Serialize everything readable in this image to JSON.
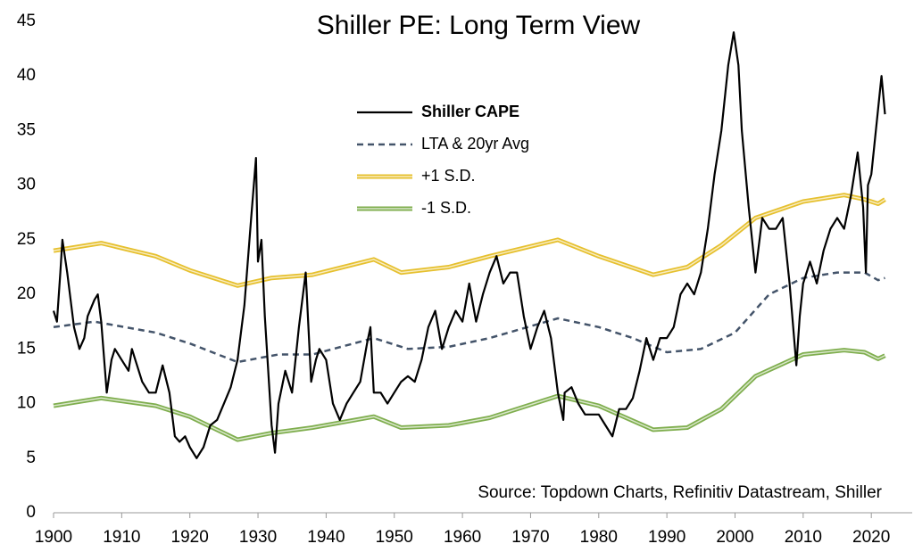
{
  "chart_data": {
    "type": "line",
    "title": "Shiller PE: Long Term View",
    "annotation": "Source: Topdown Charts, Refinitiv Datastream, Shiller",
    "xlim": [
      1900,
      2026
    ],
    "xticks": [
      1900,
      1910,
      1920,
      1930,
      1940,
      1950,
      1960,
      1970,
      1980,
      1990,
      2000,
      2010,
      2020
    ],
    "ylim": [
      0,
      45
    ],
    "yticks": [
      0,
      5,
      10,
      15,
      20,
      25,
      30,
      35,
      40,
      45
    ],
    "grid": false,
    "legend": "top-left",
    "series": [
      {
        "name": "Shiller CAPE",
        "color": "#000000",
        "style": "solid",
        "x": [
          1900,
          1900.5,
          1901,
          1901.3,
          1902,
          1903,
          1903.8,
          1904.5,
          1905,
          1906,
          1906.5,
          1907,
          1907.8,
          1908.5,
          1909,
          1910,
          1911,
          1911.5,
          1912,
          1913,
          1914,
          1915,
          1916,
          1917,
          1917.8,
          1918.5,
          1919.3,
          1920,
          1921,
          1922,
          1923,
          1924,
          1925,
          1926,
          1927,
          1928,
          1929,
          1929.7,
          1930,
          1930.5,
          1931,
          1932,
          1932.5,
          1933,
          1934,
          1935,
          1936,
          1937,
          1937.8,
          1938.5,
          1939,
          1940,
          1941,
          1942,
          1943,
          1944,
          1945,
          1946,
          1946.5,
          1947,
          1948,
          1949,
          1950,
          1951,
          1952,
          1953,
          1954,
          1955,
          1956,
          1957,
          1958,
          1959,
          1960,
          1961,
          1962,
          1963,
          1964,
          1965,
          1966,
          1967,
          1968,
          1969,
          1970,
          1971,
          1972,
          1973,
          1974,
          1974.8,
          1975,
          1976,
          1977,
          1978,
          1979,
          1980,
          1981,
          1982,
          1983,
          1984,
          1985,
          1986,
          1987,
          1988,
          1989,
          1990,
          1991,
          1992,
          1993,
          1994,
          1995,
          1996,
          1997,
          1998,
          1999,
          1999.8,
          2000.5,
          2001,
          2002,
          2003,
          2004,
          2005,
          2006,
          2007,
          2008,
          2009,
          2009.5,
          2010,
          2011,
          2012,
          2013,
          2014,
          2015,
          2016,
          2017,
          2018,
          2018.8,
          2019.2,
          2019.5,
          2020,
          2021,
          2021.5,
          2022
        ],
        "values": [
          18.5,
          17.5,
          22,
          25,
          22,
          17,
          15,
          16,
          18,
          19.5,
          20,
          17.5,
          11,
          14,
          15,
          14,
          13,
          15,
          14,
          12,
          11,
          11,
          13.5,
          11,
          7,
          6.5,
          7,
          6,
          5,
          6,
          8,
          8.5,
          10,
          11.5,
          14,
          19,
          27,
          32.5,
          23,
          25,
          18,
          8,
          5.5,
          10,
          13,
          11,
          17,
          22,
          12,
          14,
          15,
          14,
          10,
          8.5,
          10,
          11,
          12,
          15.5,
          17,
          11,
          11,
          10,
          11,
          12,
          12.5,
          12,
          14,
          17,
          18.5,
          15,
          17,
          18.5,
          17.5,
          21,
          17.5,
          20,
          22,
          23.5,
          21,
          22,
          22,
          18,
          15,
          17,
          18.5,
          16,
          11,
          8.5,
          11,
          11.5,
          10,
          9,
          9,
          9,
          8,
          7,
          9.5,
          9.5,
          10.5,
          13,
          16,
          14,
          16,
          16,
          17,
          20,
          21,
          20,
          22,
          26,
          31,
          35,
          41,
          44,
          41,
          35,
          28,
          22,
          27,
          26,
          26,
          27,
          21,
          13.5,
          18,
          21,
          23,
          21,
          24,
          26,
          27,
          26,
          29,
          33,
          28,
          22,
          30,
          31,
          37,
          40,
          36.5
        ]
      },
      {
        "name": "LTA & 20yr Avg",
        "color": "#44546a",
        "style": "dashed",
        "x": [
          1900,
          1906,
          1915,
          1920,
          1927,
          1933,
          1938,
          1947,
          1952,
          1958,
          1964,
          1974,
          1980,
          1985,
          1990,
          1995,
          2000,
          2005,
          2010,
          2015,
          2019,
          2021,
          2022
        ],
        "values": [
          17,
          17.5,
          16.5,
          15.5,
          13.8,
          14.5,
          14.5,
          16,
          15,
          15.2,
          16,
          17.8,
          17,
          16,
          14.7,
          15,
          16.5,
          20,
          21.5,
          22,
          22,
          21.3,
          21.5
        ]
      },
      {
        "name": "+1 S.D.",
        "color": "#e6c02e",
        "style": "double",
        "x": [
          1900,
          1907,
          1915,
          1920,
          1927,
          1932,
          1938,
          1947,
          1951,
          1958,
          1964,
          1974,
          1980,
          1988,
          1993,
          1998,
          2003,
          2010,
          2016,
          2019,
          2021,
          2022
        ],
        "values": [
          24,
          24.7,
          23.5,
          22.2,
          20.8,
          21.5,
          21.8,
          23.2,
          22,
          22.5,
          23.5,
          25,
          23.5,
          21.8,
          22.5,
          24.5,
          27,
          28.5,
          29.1,
          28.7,
          28.3,
          28.7
        ]
      },
      {
        "name": "-1 S.D.",
        "color": "#7fae4e",
        "style": "double",
        "x": [
          1900,
          1907,
          1915,
          1920,
          1927,
          1932,
          1938,
          1947,
          1951,
          1958,
          1964,
          1974,
          1980,
          1988,
          1993,
          1998,
          2003,
          2010,
          2016,
          2019,
          2021,
          2022
        ],
        "values": [
          9.8,
          10.5,
          9.8,
          8.8,
          6.7,
          7.3,
          7.8,
          8.8,
          7.8,
          8,
          8.7,
          10.7,
          9.8,
          7.6,
          7.8,
          9.5,
          12.5,
          14.5,
          14.9,
          14.7,
          14.1,
          14.4
        ]
      }
    ]
  }
}
